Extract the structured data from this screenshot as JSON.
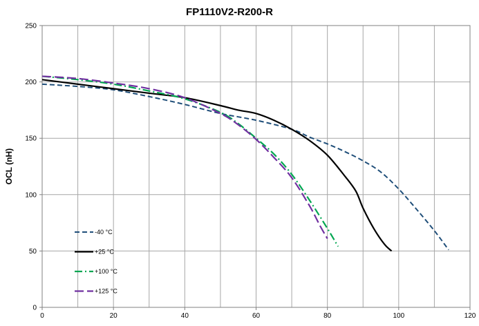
{
  "chart_data": {
    "type": "line",
    "title": "FP1110V2-R200-R",
    "xlabel": "",
    "ylabel": "OCL (nH)",
    "xlim": [
      0,
      120
    ],
    "ylim": [
      0,
      250
    ],
    "xticks": [
      0,
      20,
      40,
      60,
      80,
      100,
      120
    ],
    "yticks": [
      0,
      50,
      100,
      150,
      200,
      250
    ],
    "xtick_labels": [
      "0",
      "20",
      "40",
      "60",
      "80",
      "100",
      "120"
    ],
    "ytick_labels": [
      "0",
      "50",
      "100",
      "150",
      "200",
      "250"
    ],
    "grid": true,
    "legend_position": "bottom-left",
    "series": [
      {
        "name": "-40 °C",
        "color": "#1F4E79",
        "dash": "dashed",
        "points": [
          [
            0,
            198
          ],
          [
            10,
            196
          ],
          [
            20,
            193
          ],
          [
            30,
            187
          ],
          [
            40,
            180
          ],
          [
            50,
            172
          ],
          [
            60,
            166
          ],
          [
            70,
            158
          ],
          [
            75,
            151
          ],
          [
            80,
            145
          ],
          [
            85,
            138
          ],
          [
            90,
            130
          ],
          [
            95,
            120
          ],
          [
            100,
            105
          ],
          [
            105,
            87
          ],
          [
            110,
            68
          ],
          [
            114,
            51
          ]
        ]
      },
      {
        "name": "+25 °C",
        "color": "#000000",
        "dash": "solid",
        "points": [
          [
            0,
            202
          ],
          [
            10,
            198
          ],
          [
            20,
            194
          ],
          [
            30,
            190
          ],
          [
            40,
            186
          ],
          [
            50,
            179
          ],
          [
            55,
            175
          ],
          [
            60,
            172
          ],
          [
            65,
            166
          ],
          [
            70,
            158
          ],
          [
            75,
            148
          ],
          [
            80,
            135
          ],
          [
            85,
            116
          ],
          [
            88,
            103
          ],
          [
            90,
            88
          ],
          [
            93,
            70
          ],
          [
            96,
            56
          ],
          [
            98,
            50
          ]
        ]
      },
      {
        "name": "+100 °C",
        "color": "#00A651",
        "dash": "dashdot",
        "points": [
          [
            0,
            205
          ],
          [
            10,
            202
          ],
          [
            20,
            198
          ],
          [
            30,
            192
          ],
          [
            40,
            185
          ],
          [
            50,
            173
          ],
          [
            55,
            163
          ],
          [
            60,
            150
          ],
          [
            65,
            136
          ],
          [
            70,
            118
          ],
          [
            75,
            95
          ],
          [
            80,
            70
          ],
          [
            83,
            54
          ]
        ]
      },
      {
        "name": "+125 °C",
        "color": "#7030A0",
        "dash": "longdash",
        "points": [
          [
            0,
            205
          ],
          [
            10,
            203
          ],
          [
            20,
            199
          ],
          [
            30,
            194
          ],
          [
            40,
            186
          ],
          [
            50,
            172
          ],
          [
            55,
            162
          ],
          [
            60,
            149
          ],
          [
            65,
            133
          ],
          [
            70,
            115
          ],
          [
            75,
            90
          ],
          [
            78,
            72
          ],
          [
            80,
            61
          ]
        ]
      }
    ]
  }
}
